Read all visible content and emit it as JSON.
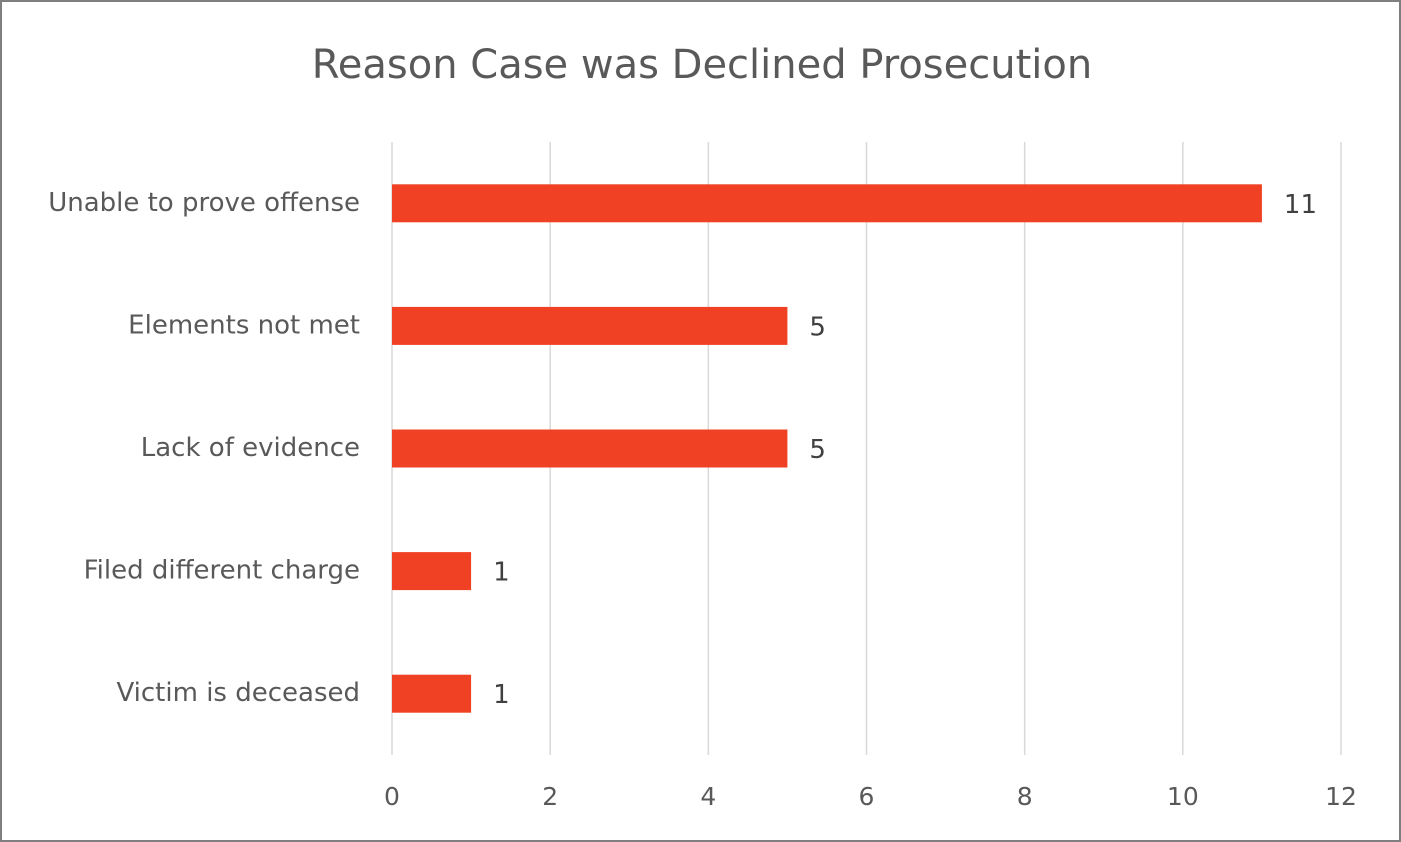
{
  "chart_data": {
    "type": "bar",
    "orientation": "horizontal",
    "title": "Reason Case was Declined Prosecution",
    "categories": [
      "Unable to prove offense",
      "Elements not met",
      "Lack of evidence",
      "Filed different charge",
      "Victim is deceased"
    ],
    "values": [
      11,
      5,
      5,
      1,
      1
    ],
    "color": "#f04125",
    "xlim": [
      0,
      12
    ],
    "xticks": [
      0,
      2,
      4,
      6,
      8,
      10,
      12
    ],
    "grid": true
  }
}
